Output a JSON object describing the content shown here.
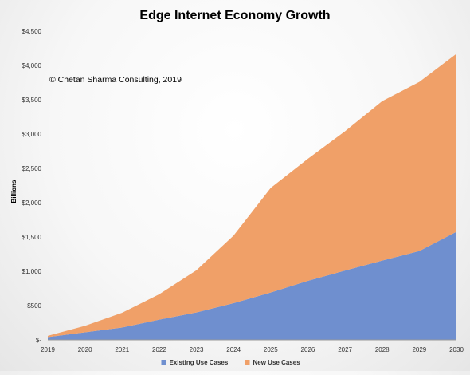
{
  "chart_data": {
    "type": "area",
    "stacked": true,
    "title": "Edge Internet Economy Growth",
    "annotation": "© Chetan Sharma Consulting, 2019",
    "ylabel": "Billions",
    "xlabel": "",
    "ylim": [
      0,
      4500
    ],
    "yticks": [
      0,
      500,
      1000,
      1500,
      2000,
      2500,
      3000,
      3500,
      4000,
      4500
    ],
    "ytick_labels": [
      "$-",
      "$500",
      "$1,000",
      "$1,500",
      "$2,000",
      "$2,500",
      "$3,000",
      "$3,500",
      "$4,000",
      "$4,500"
    ],
    "x": [
      "2019",
      "2020",
      "2021",
      "2022",
      "2023",
      "2024",
      "2025",
      "2026",
      "2027",
      "2028",
      "2029",
      "2030"
    ],
    "series": [
      {
        "name": "Existing Use Cases",
        "color": "#6f8fcf",
        "values": [
          40,
          110,
          180,
          295,
          400,
          535,
          690,
          860,
          1010,
          1155,
          1295,
          1575
        ]
      },
      {
        "name": "New Use Cases",
        "color": "#f0a068",
        "values": [
          20,
          95,
          215,
          370,
          615,
          985,
          1525,
          1780,
          2030,
          2325,
          2465,
          2595
        ]
      }
    ],
    "grid": false,
    "legend_position": "bottom"
  }
}
